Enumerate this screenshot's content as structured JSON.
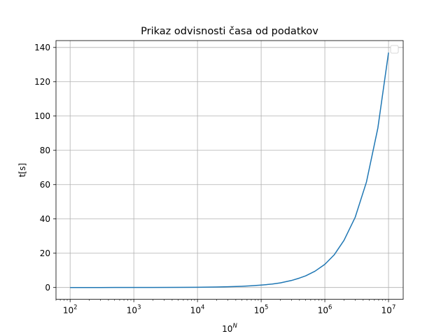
{
  "chart_data": {
    "type": "line",
    "title": "Prikaz odvisnosti časa od podatkov",
    "xlabel_base": "10",
    "xlabel_exp": "N",
    "ylabel": "t[s]",
    "x_scale": "log",
    "xlim": [
      60,
      17000000
    ],
    "ylim": [
      -6.9,
      144
    ],
    "x_ticks": [
      {
        "value": 100,
        "base": "10",
        "exp": "2"
      },
      {
        "value": 1000,
        "base": "10",
        "exp": "3"
      },
      {
        "value": 10000,
        "base": "10",
        "exp": "4"
      },
      {
        "value": 100000,
        "base": "10",
        "exp": "5"
      },
      {
        "value": 1000000,
        "base": "10",
        "exp": "6"
      },
      {
        "value": 10000000,
        "base": "10",
        "exp": "7"
      }
    ],
    "y_ticks": [
      "0",
      "20",
      "40",
      "60",
      "80",
      "100",
      "120",
      "140"
    ],
    "grid": true,
    "legend": "top-right",
    "series": [
      {
        "color": "#1f77b4",
        "x": [
          100,
          200,
          300,
          500,
          1000,
          2000,
          5000,
          10000,
          20000,
          30000,
          50000,
          70000,
          100000,
          150000,
          200000,
          300000,
          400000,
          500000,
          700000,
          1000000,
          1400000,
          2000000,
          3000000,
          4500000,
          6800000,
          10000000
        ],
        "y": [
          0.0,
          0.0,
          0.0,
          0.01,
          0.02,
          0.03,
          0.07,
          0.14,
          0.28,
          0.42,
          0.7,
          0.98,
          1.4,
          2.0,
          2.7,
          4.1,
          5.5,
          6.8,
          9.5,
          13.5,
          19.0,
          27.5,
          41.0,
          61.5,
          93.0,
          137.0
        ]
      }
    ]
  }
}
